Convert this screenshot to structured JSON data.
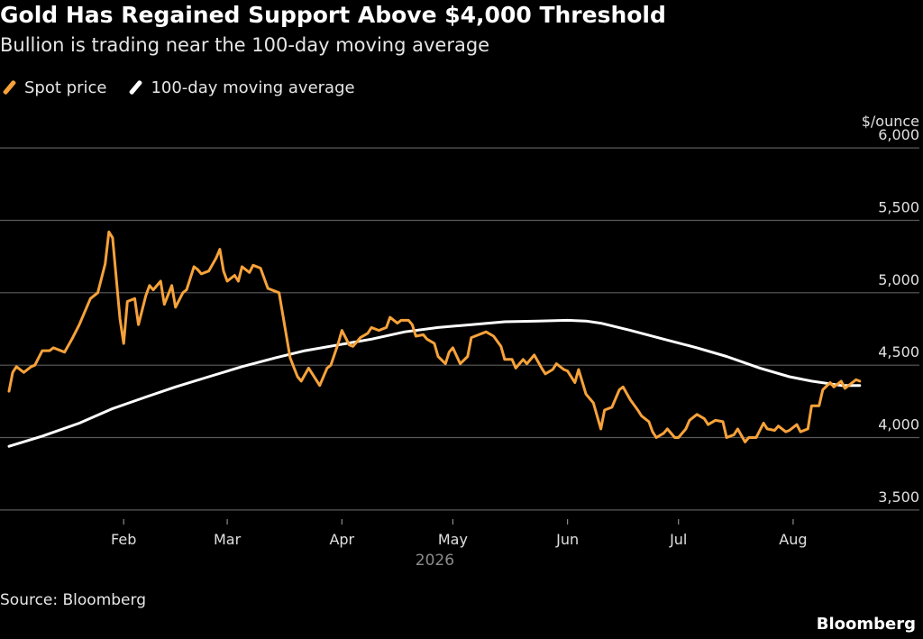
{
  "header": {
    "title": "Gold Has Regained Support Above $4,000 Threshold",
    "subtitle": "Bullion is trading near the 100-day moving average"
  },
  "footer": {
    "source": "Source: Bloomberg",
    "brand": "Bloomberg"
  },
  "colors": {
    "background": "#000000",
    "spot": "#f7a23a",
    "moving_average": "#ffffff",
    "grid": "#5a5a5a"
  },
  "chart_data": {
    "type": "line",
    "title": "Gold Has Regained Support Above $4,000 Threshold",
    "subtitle": "Bullion is trading near the 100-day moving average",
    "ylabel": "$/ounce",
    "year_label": "2026",
    "ylim": [
      3350,
      6150
    ],
    "yticks": [
      3500,
      4000,
      4500,
      5000,
      5500,
      6000
    ],
    "ytick_labels": [
      "3,500",
      "4,000",
      "4,500",
      "5,000",
      "5,500",
      "6,000"
    ],
    "xlim": [
      "2026-01-01",
      "2026-08-21"
    ],
    "xticks": [
      {
        "label": "Feb",
        "date": "2026-02-01"
      },
      {
        "label": "Mar",
        "date": "2026-03-01"
      },
      {
        "label": "Apr",
        "date": "2026-04-01"
      },
      {
        "label": "May",
        "date": "2026-05-01"
      },
      {
        "label": "Jun",
        "date": "2026-06-01"
      },
      {
        "label": "Jul",
        "date": "2026-07-01"
      },
      {
        "label": "Aug",
        "date": "2026-08-01"
      }
    ],
    "grid": true,
    "legend_position": "top-left",
    "series": [
      {
        "name": "Spot price",
        "color": "#f7a23a",
        "points": [
          [
            "2026-01-01",
            4320
          ],
          [
            "2026-01-02",
            4450
          ],
          [
            "2026-01-03",
            4490
          ],
          [
            "2026-01-05",
            4450
          ],
          [
            "2026-01-07",
            4490
          ],
          [
            "2026-01-08",
            4500
          ],
          [
            "2026-01-10",
            4600
          ],
          [
            "2026-01-12",
            4600
          ],
          [
            "2026-01-13",
            4620
          ],
          [
            "2026-01-16",
            4590
          ],
          [
            "2026-01-18",
            4680
          ],
          [
            "2026-01-20",
            4780
          ],
          [
            "2026-01-22",
            4900
          ],
          [
            "2026-01-23",
            4960
          ],
          [
            "2026-01-25",
            5000
          ],
          [
            "2026-01-27",
            5200
          ],
          [
            "2026-01-28",
            5420
          ],
          [
            "2026-01-29",
            5380
          ],
          [
            "2026-01-30",
            5100
          ],
          [
            "2026-01-31",
            4820
          ],
          [
            "2026-02-01",
            4650
          ],
          [
            "2026-02-02",
            4940
          ],
          [
            "2026-02-04",
            4960
          ],
          [
            "2026-02-05",
            4780
          ],
          [
            "2026-02-07",
            4980
          ],
          [
            "2026-02-08",
            5050
          ],
          [
            "2026-02-09",
            5020
          ],
          [
            "2026-02-11",
            5080
          ],
          [
            "2026-02-12",
            4920
          ],
          [
            "2026-02-14",
            5050
          ],
          [
            "2026-02-15",
            4900
          ],
          [
            "2026-02-17",
            5000
          ],
          [
            "2026-02-18",
            5020
          ],
          [
            "2026-02-20",
            5180
          ],
          [
            "2026-02-21",
            5160
          ],
          [
            "2026-02-22",
            5130
          ],
          [
            "2026-02-24",
            5150
          ],
          [
            "2026-02-26",
            5240
          ],
          [
            "2026-02-27",
            5300
          ],
          [
            "2026-02-28",
            5150
          ],
          [
            "2026-03-01",
            5080
          ],
          [
            "2026-03-03",
            5120
          ],
          [
            "2026-03-04",
            5080
          ],
          [
            "2026-03-05",
            5180
          ],
          [
            "2026-03-07",
            5140
          ],
          [
            "2026-03-08",
            5190
          ],
          [
            "2026-03-10",
            5170
          ],
          [
            "2026-03-12",
            5030
          ],
          [
            "2026-03-14",
            5010
          ],
          [
            "2026-03-15",
            5000
          ],
          [
            "2026-03-17",
            4700
          ],
          [
            "2026-03-18",
            4550
          ],
          [
            "2026-03-20",
            4420
          ],
          [
            "2026-03-21",
            4390
          ],
          [
            "2026-03-23",
            4480
          ],
          [
            "2026-03-24",
            4440
          ],
          [
            "2026-03-26",
            4360
          ],
          [
            "2026-03-28",
            4480
          ],
          [
            "2026-03-29",
            4500
          ],
          [
            "2026-03-31",
            4650
          ],
          [
            "2026-04-01",
            4740
          ],
          [
            "2026-04-03",
            4640
          ],
          [
            "2026-04-04",
            4630
          ],
          [
            "2026-04-06",
            4690
          ],
          [
            "2026-04-08",
            4720
          ],
          [
            "2026-04-09",
            4760
          ],
          [
            "2026-04-11",
            4740
          ],
          [
            "2026-04-13",
            4760
          ],
          [
            "2026-04-14",
            4830
          ],
          [
            "2026-04-16",
            4790
          ],
          [
            "2026-04-17",
            4810
          ],
          [
            "2026-04-19",
            4810
          ],
          [
            "2026-04-20",
            4780
          ],
          [
            "2026-04-21",
            4700
          ],
          [
            "2026-04-23",
            4710
          ],
          [
            "2026-04-24",
            4680
          ],
          [
            "2026-04-26",
            4650
          ],
          [
            "2026-04-27",
            4560
          ],
          [
            "2026-04-29",
            4510
          ],
          [
            "2026-04-30",
            4590
          ],
          [
            "2026-05-01",
            4620
          ],
          [
            "2026-05-03",
            4510
          ],
          [
            "2026-05-05",
            4560
          ],
          [
            "2026-05-06",
            4690
          ],
          [
            "2026-05-08",
            4710
          ],
          [
            "2026-05-10",
            4730
          ],
          [
            "2026-05-12",
            4700
          ],
          [
            "2026-05-14",
            4630
          ],
          [
            "2026-05-15",
            4540
          ],
          [
            "2026-05-17",
            4540
          ],
          [
            "2026-05-18",
            4480
          ],
          [
            "2026-05-20",
            4540
          ],
          [
            "2026-05-21",
            4510
          ],
          [
            "2026-05-23",
            4570
          ],
          [
            "2026-05-25",
            4480
          ],
          [
            "2026-05-26",
            4440
          ],
          [
            "2026-05-28",
            4470
          ],
          [
            "2026-05-29",
            4510
          ],
          [
            "2026-05-31",
            4470
          ],
          [
            "2026-06-01",
            4460
          ],
          [
            "2026-06-03",
            4380
          ],
          [
            "2026-06-04",
            4470
          ],
          [
            "2026-06-06",
            4300
          ],
          [
            "2026-06-08",
            4240
          ],
          [
            "2026-06-10",
            4060
          ],
          [
            "2026-06-11",
            4190
          ],
          [
            "2026-06-13",
            4210
          ],
          [
            "2026-06-15",
            4330
          ],
          [
            "2026-06-16",
            4350
          ],
          [
            "2026-06-18",
            4260
          ],
          [
            "2026-06-20",
            4190
          ],
          [
            "2026-06-21",
            4150
          ],
          [
            "2026-06-23",
            4110
          ],
          [
            "2026-06-24",
            4040
          ],
          [
            "2026-06-25",
            4000
          ],
          [
            "2026-06-27",
            4030
          ],
          [
            "2026-06-28",
            4060
          ],
          [
            "2026-06-30",
            4000
          ],
          [
            "2026-07-01",
            4000
          ],
          [
            "2026-07-03",
            4060
          ],
          [
            "2026-07-04",
            4120
          ],
          [
            "2026-07-06",
            4160
          ],
          [
            "2026-07-08",
            4130
          ],
          [
            "2026-07-09",
            4090
          ],
          [
            "2026-07-11",
            4120
          ],
          [
            "2026-07-13",
            4110
          ],
          [
            "2026-07-14",
            4000
          ],
          [
            "2026-07-16",
            4020
          ],
          [
            "2026-07-17",
            4060
          ],
          [
            "2026-07-19",
            3970
          ],
          [
            "2026-07-20",
            4000
          ],
          [
            "2026-07-22",
            4000
          ],
          [
            "2026-07-24",
            4100
          ],
          [
            "2026-07-25",
            4060
          ],
          [
            "2026-07-27",
            4050
          ],
          [
            "2026-07-28",
            4080
          ],
          [
            "2026-07-30",
            4040
          ],
          [
            "2026-07-31",
            4050
          ],
          [
            "2026-08-02",
            4090
          ],
          [
            "2026-08-03",
            4040
          ],
          [
            "2026-08-05",
            4060
          ],
          [
            "2026-08-06",
            4220
          ],
          [
            "2026-08-08",
            4220
          ],
          [
            "2026-08-09",
            4330
          ],
          [
            "2026-08-11",
            4380
          ],
          [
            "2026-08-12",
            4350
          ],
          [
            "2026-08-14",
            4390
          ],
          [
            "2026-08-15",
            4340
          ],
          [
            "2026-08-17",
            4380
          ],
          [
            "2026-08-18",
            4400
          ],
          [
            "2026-08-19",
            4390
          ]
        ]
      },
      {
        "name": "100-day moving average",
        "color": "#ffffff",
        "points": [
          [
            "2026-01-01",
            3940
          ],
          [
            "2026-01-10",
            4010
          ],
          [
            "2026-01-20",
            4100
          ],
          [
            "2026-01-29",
            4200
          ],
          [
            "2026-02-07",
            4280
          ],
          [
            "2026-02-15",
            4350
          ],
          [
            "2026-02-24",
            4420
          ],
          [
            "2026-03-05",
            4490
          ],
          [
            "2026-03-14",
            4550
          ],
          [
            "2026-03-22",
            4600
          ],
          [
            "2026-03-31",
            4640
          ],
          [
            "2026-04-09",
            4680
          ],
          [
            "2026-04-18",
            4730
          ],
          [
            "2026-04-27",
            4760
          ],
          [
            "2026-05-06",
            4780
          ],
          [
            "2026-05-15",
            4800
          ],
          [
            "2026-05-24",
            4805
          ],
          [
            "2026-06-01",
            4810
          ],
          [
            "2026-06-06",
            4805
          ],
          [
            "2026-06-10",
            4790
          ],
          [
            "2026-06-18",
            4740
          ],
          [
            "2026-06-27",
            4680
          ],
          [
            "2026-07-06",
            4620
          ],
          [
            "2026-07-14",
            4560
          ],
          [
            "2026-07-23",
            4480
          ],
          [
            "2026-07-31",
            4420
          ],
          [
            "2026-08-06",
            4390
          ],
          [
            "2026-08-14",
            4360
          ],
          [
            "2026-08-19",
            4360
          ]
        ]
      }
    ]
  }
}
